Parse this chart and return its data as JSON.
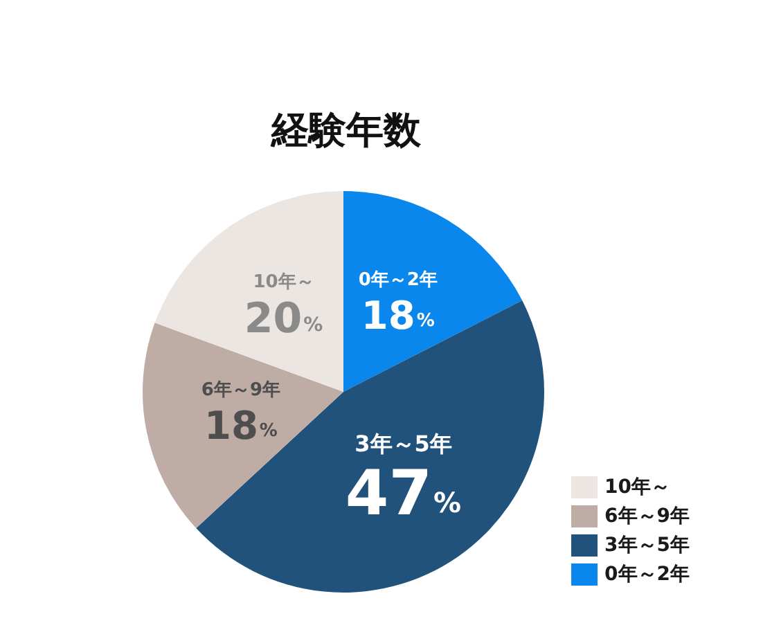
{
  "chart_data": {
    "type": "pie",
    "title": "経験年数",
    "categories": [
      "0年～2年",
      "3年～5年",
      "6年～9年",
      "10年～"
    ],
    "values": [
      18,
      47,
      18,
      20
    ],
    "colors": [
      "#0a87ec",
      "#20527b",
      "#bfaca5",
      "#ebe6e2"
    ],
    "value_labels": [
      "18%",
      "47%",
      "18%",
      "20%"
    ],
    "legend": "bottom right"
  }
}
